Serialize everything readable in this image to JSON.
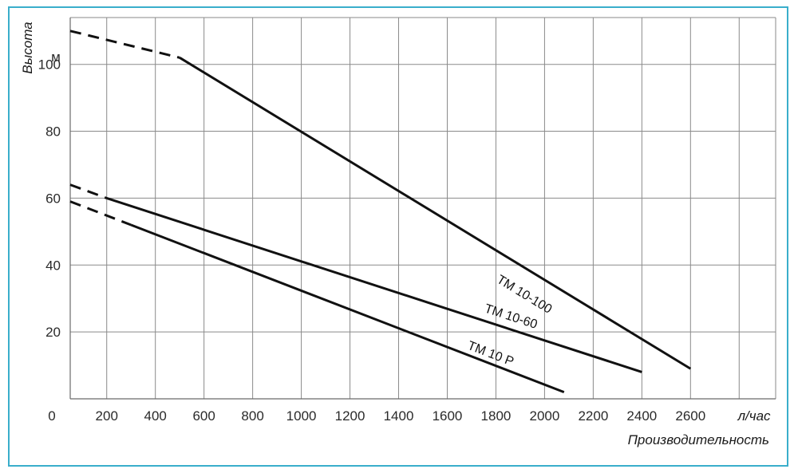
{
  "chart_data": {
    "type": "line",
    "xlabel": "Производительность",
    "ylabel": "Высота",
    "x_unit": "л/час",
    "y_unit": "м",
    "xlim": [
      50,
      2950
    ],
    "ylim": [
      0,
      114
    ],
    "x_ticks": [
      200,
      400,
      600,
      800,
      1000,
      1200,
      1400,
      1600,
      1800,
      2000,
      2200,
      2400,
      2600
    ],
    "y_ticks": [
      20,
      40,
      60,
      80,
      100
    ],
    "origin_label": "0",
    "grid": true,
    "series": [
      {
        "name": "TM 10-100",
        "points": [
          [
            50,
            110
          ],
          [
            500,
            102
          ],
          [
            2600,
            9
          ]
        ],
        "dashed_until": 500,
        "label_at": [
          1800,
          35
        ],
        "color": "#111111"
      },
      {
        "name": "TM 10-60",
        "points": [
          [
            50,
            64
          ],
          [
            200,
            60
          ],
          [
            2400,
            8
          ]
        ],
        "dashed_until": 200,
        "label_at": [
          1750,
          26
        ],
        "color": "#111111"
      },
      {
        "name": "TM 10 P",
        "points": [
          [
            50,
            59
          ],
          [
            300,
            52
          ],
          [
            2080,
            2
          ]
        ],
        "dashed_until": 300,
        "label_at": [
          1680,
          15
        ],
        "color": "#111111"
      }
    ],
    "grid_color": "#8a8a8a",
    "frame_color": "#3aaecb"
  }
}
